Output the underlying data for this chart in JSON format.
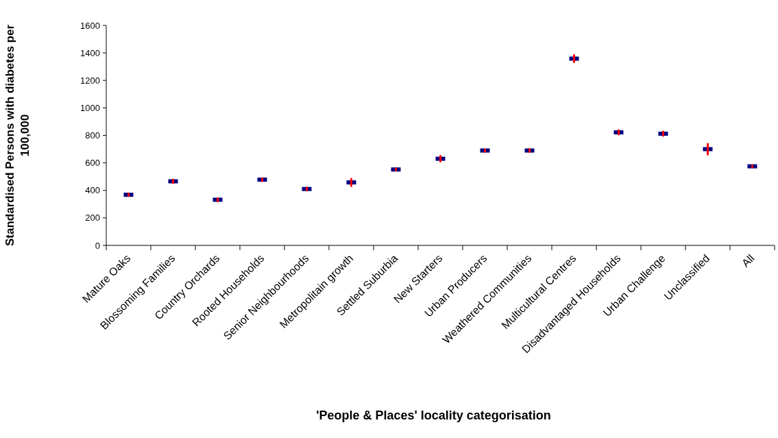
{
  "chart_data": {
    "type": "scatter",
    "xlabel": "'People & Places' locality categorisation",
    "ylabel": "Standardised Persons with diabetes per 100,000",
    "categories": [
      "Mature Oaks",
      "Blossoming Families",
      "Country Orchards",
      "Rooted Households",
      "Senior Neighbourhoods",
      "Metropolitain growth",
      "Settled Suburbia",
      "New Starters",
      "Urban Producers",
      "Weathered Communities",
      "Multicultural Centres",
      "Disadvantaged Households",
      "Urban Challenge",
      "Unclassified",
      "All"
    ],
    "series": [
      {
        "color": "#000080",
        "values": [
          368,
          466,
          332,
          478,
          410,
          458,
          552,
          630,
          690,
          690,
          1358,
          822,
          812,
          700,
          575
        ],
        "errors": [
          8,
          13,
          10,
          10,
          10,
          25,
          8,
          20,
          8,
          10,
          25,
          15,
          15,
          38,
          6
        ]
      }
    ],
    "ylim": [
      0,
      1600
    ],
    "yticks": [
      0,
      200,
      400,
      600,
      800,
      1000,
      1200,
      1400,
      1600
    ],
    "grid": false
  }
}
